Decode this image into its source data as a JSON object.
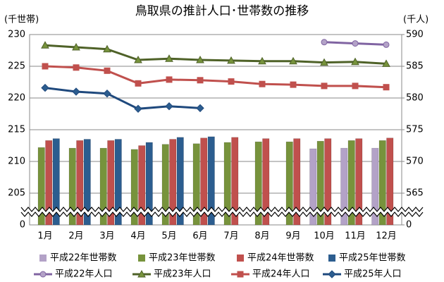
{
  "chart_data": {
    "type": "bar-line",
    "title": "鳥取県の推計人口･世帯数の推移",
    "y_label": "(千世帯)",
    "y2_label": "(千人)",
    "categories": [
      "1月",
      "2月",
      "3月",
      "4月",
      "5月",
      "6月",
      "7月",
      "8月",
      "9月",
      "10月",
      "11月",
      "12月"
    ],
    "ylim": [
      0,
      230
    ],
    "yticks": [
      0,
      205,
      210,
      215,
      220,
      225,
      230
    ],
    "y_break": [
      0,
      200
    ],
    "y2lim": [
      0,
      590
    ],
    "y2ticks": [
      0,
      565,
      570,
      575,
      580,
      585,
      590
    ],
    "y2_break": [
      0,
      560
    ],
    "grid": true,
    "series": [
      {
        "name": "平成22年世帯数",
        "kind": "bar",
        "color": "#b3a2c7",
        "values": [
          null,
          null,
          null,
          null,
          null,
          null,
          null,
          null,
          null,
          212.0,
          212.1,
          212.1
        ]
      },
      {
        "name": "平成23年世帯数",
        "kind": "bar",
        "color": "#77933c",
        "values": [
          212.2,
          212.1,
          212.1,
          211.9,
          212.7,
          212.8,
          213.0,
          213.1,
          213.1,
          213.2,
          213.3,
          213.3
        ]
      },
      {
        "name": "平成24年世帯数",
        "kind": "bar",
        "color": "#c0504d",
        "values": [
          213.3,
          213.3,
          213.3,
          212.5,
          213.5,
          213.7,
          213.8,
          213.6,
          213.6,
          213.6,
          213.6,
          213.7
        ]
      },
      {
        "name": "平成25年世帯数",
        "kind": "bar",
        "color": "#2c5d8f",
        "values": [
          213.6,
          213.5,
          213.5,
          213.0,
          213.8,
          213.9,
          null,
          null,
          null,
          null,
          null,
          null
        ]
      },
      {
        "name": "平成22年人口",
        "kind": "line",
        "axis": "y2",
        "marker": "circle",
        "color": "#8064a2",
        "fill": "#b3a2c7",
        "values": [
          null,
          null,
          null,
          null,
          null,
          null,
          null,
          null,
          null,
          588.8,
          588.6,
          588.4
        ]
      },
      {
        "name": "平成23年人口",
        "kind": "line",
        "axis": "y2",
        "marker": "triangle",
        "color": "#4f6228",
        "fill": "#77933c",
        "values": [
          588.3,
          588.0,
          587.7,
          586.0,
          586.2,
          586.0,
          585.9,
          585.8,
          585.8,
          585.6,
          585.7,
          585.4
        ]
      },
      {
        "name": "平成24年人口",
        "kind": "line",
        "axis": "y2",
        "marker": "square",
        "color": "#c0504d",
        "fill": "#c0504d",
        "values": [
          585.0,
          584.8,
          584.3,
          582.3,
          582.9,
          582.8,
          582.6,
          582.2,
          582.1,
          581.9,
          581.9,
          581.7
        ]
      },
      {
        "name": "平成25年人口",
        "kind": "line",
        "axis": "y2",
        "marker": "diamond",
        "color": "#1f497d",
        "fill": "#2c5d8f",
        "values": [
          581.6,
          581.0,
          580.7,
          578.3,
          578.7,
          578.4,
          null,
          null,
          null,
          null,
          null,
          null
        ]
      }
    ]
  }
}
